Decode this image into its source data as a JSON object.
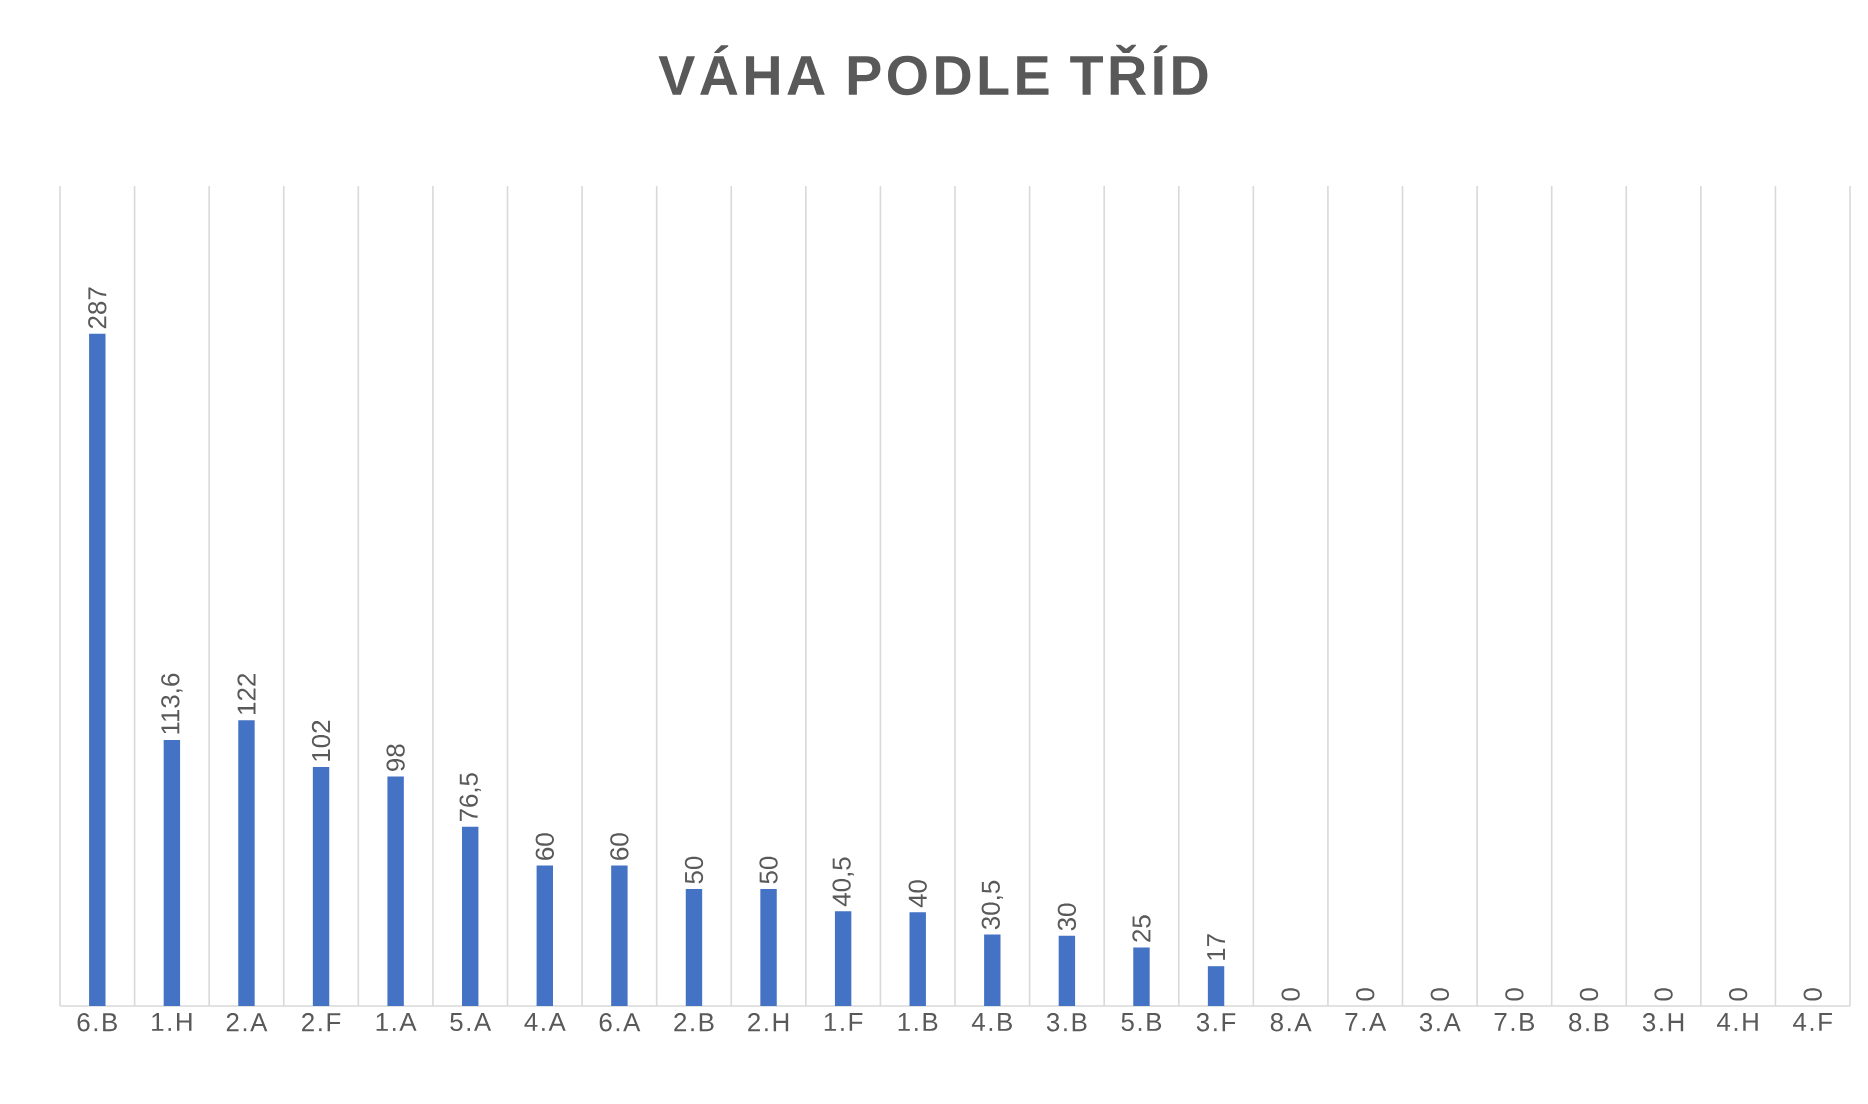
{
  "chart_data": {
    "type": "bar",
    "title": "VÁHA PODLE TŘÍD",
    "categories": [
      "6.B",
      "1.H",
      "2.A",
      "2.F",
      "1.A",
      "5.A",
      "4.A",
      "6.A",
      "2.B",
      "2.H",
      "1.F",
      "1.B",
      "4.B",
      "3.B",
      "5.B",
      "3.F",
      "8.A",
      "7.A",
      "3.A",
      "7.B",
      "8.B",
      "3.H",
      "4.H",
      "4.F"
    ],
    "values": [
      287,
      113.6,
      122,
      102,
      98,
      76.5,
      60,
      60,
      50,
      50,
      40.5,
      40,
      30.5,
      30,
      25,
      17,
      0,
      0,
      0,
      0,
      0,
      0,
      0,
      0
    ],
    "value_labels": [
      "287",
      "113,6",
      "122",
      "102",
      "98",
      "76,5",
      "60",
      "60",
      "50",
      "50",
      "40,5",
      "40",
      "30,5",
      "30",
      "25",
      "17",
      "0",
      "0",
      "0",
      "0",
      "0",
      "0",
      "0",
      "0"
    ],
    "color": "#4472c4",
    "grid": "x"
  }
}
